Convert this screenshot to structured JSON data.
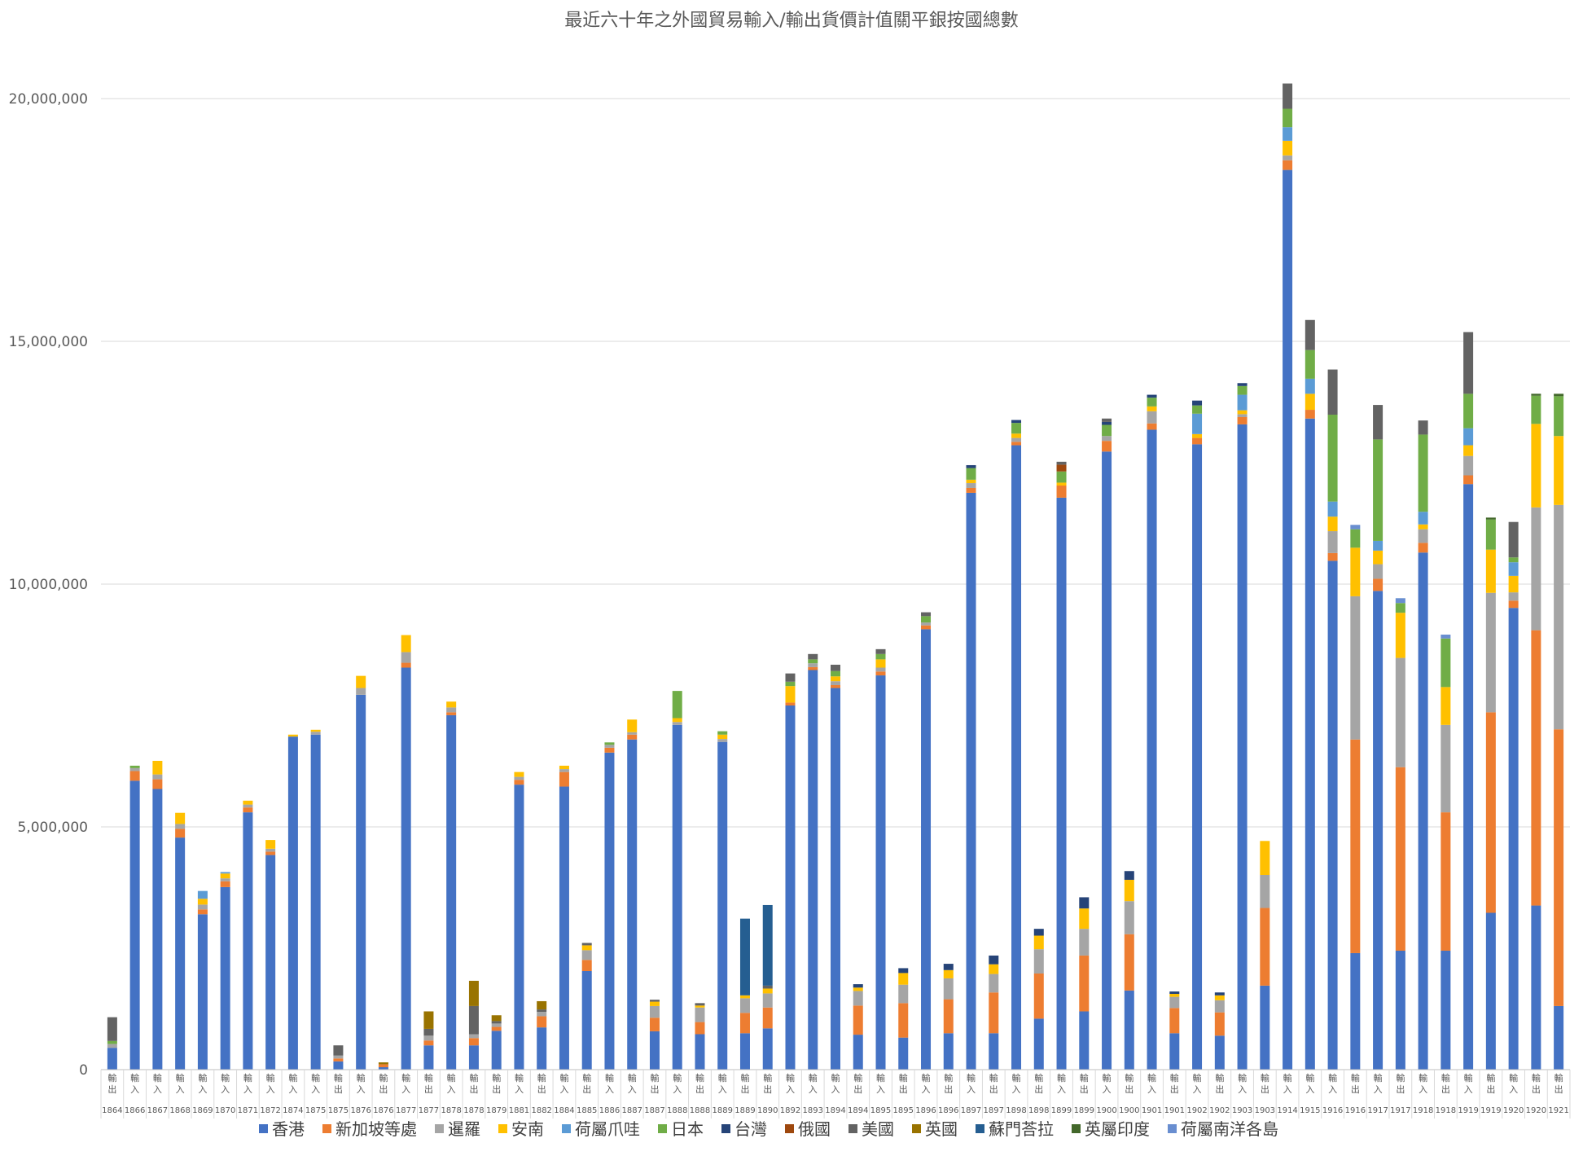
{
  "chart_data": {
    "type": "bar",
    "stacked": true,
    "title": "最近六十年之外國貿易輸入/輸出貨價計值關平銀按國總數",
    "xlabel": "",
    "ylabel": "",
    "ylim": [
      0,
      21000000
    ],
    "yticks": [
      0,
      5000000,
      10000000,
      15000000,
      20000000
    ],
    "ytick_labels": [
      "0",
      "5,000,000",
      "10,000,000",
      "15,000,000",
      "20,000,000"
    ],
    "grid": true,
    "legend_position": "bottom",
    "series_names": [
      "香港",
      "新加坡等處",
      "暹羅",
      "安南",
      "荷屬爪哇",
      "日本",
      "台灣",
      "俄國",
      "美國",
      "英國",
      "蘇門荅拉",
      "英屬印度",
      "荷屬南洋各島"
    ],
    "series_colors": [
      "#4472c4",
      "#ed7d31",
      "#a5a5a5",
      "#ffc000",
      "#5b9bd5",
      "#70ad47",
      "#264478",
      "#9e480e",
      "#636363",
      "#997300",
      "#255e91",
      "#43682b",
      "#698ed0"
    ],
    "categories": [
      {
        "year": "1864",
        "flow": "輸出",
        "v": [
          450000,
          0,
          80000,
          0,
          0,
          60000,
          0,
          0,
          490000,
          0,
          0,
          0,
          0
        ]
      },
      {
        "year": "1866",
        "flow": "輸入",
        "v": [
          5950000,
          200000,
          60000,
          0,
          0,
          50000,
          0,
          0,
          0,
          0,
          0,
          0,
          0
        ]
      },
      {
        "year": "1867",
        "flow": "輸入",
        "v": [
          5780000,
          200000,
          100000,
          280000,
          0,
          0,
          0,
          0,
          0,
          0,
          0,
          0,
          0
        ]
      },
      {
        "year": "1868",
        "flow": "輸入",
        "v": [
          4780000,
          180000,
          100000,
          230000,
          0,
          0,
          0,
          0,
          0,
          0,
          0,
          0,
          0
        ]
      },
      {
        "year": "1869",
        "flow": "輸入",
        "v": [
          3200000,
          100000,
          100000,
          120000,
          160000,
          0,
          0,
          0,
          0,
          0,
          0,
          0,
          0
        ]
      },
      {
        "year": "1870",
        "flow": "輸入",
        "v": [
          3760000,
          120000,
          60000,
          100000,
          30000,
          0,
          0,
          0,
          0,
          0,
          0,
          0,
          0
        ]
      },
      {
        "year": "1871",
        "flow": "輸入",
        "v": [
          5300000,
          100000,
          60000,
          80000,
          0,
          0,
          0,
          0,
          0,
          0,
          0,
          0,
          0
        ]
      },
      {
        "year": "1872",
        "flow": "輸入",
        "v": [
          4420000,
          70000,
          60000,
          180000,
          0,
          0,
          0,
          0,
          0,
          0,
          0,
          0,
          0
        ]
      },
      {
        "year": "1874",
        "flow": "輸入",
        "v": [
          6860000,
          0,
          0,
          40000,
          0,
          0,
          0,
          0,
          0,
          0,
          0,
          0,
          0
        ]
      },
      {
        "year": "1875",
        "flow": "輸入",
        "v": [
          6900000,
          0,
          60000,
          40000,
          0,
          0,
          0,
          0,
          0,
          0,
          0,
          0,
          0
        ]
      },
      {
        "year": "1875",
        "flow": "輸出",
        "v": [
          170000,
          60000,
          60000,
          0,
          0,
          0,
          0,
          0,
          210000,
          0,
          0,
          0,
          0
        ]
      },
      {
        "year": "1876",
        "flow": "輸入",
        "v": [
          7720000,
          0,
          140000,
          250000,
          0,
          0,
          0,
          0,
          0,
          0,
          0,
          0,
          0
        ]
      },
      {
        "year": "1876",
        "flow": "輸出",
        "v": [
          50000,
          60000,
          0,
          0,
          0,
          0,
          0,
          0,
          0,
          40000,
          0,
          0,
          0
        ]
      },
      {
        "year": "1877",
        "flow": "輸入",
        "v": [
          8280000,
          100000,
          220000,
          350000,
          0,
          0,
          0,
          0,
          0,
          0,
          0,
          0,
          0
        ]
      },
      {
        "year": "1877",
        "flow": "輸出",
        "v": [
          500000,
          100000,
          100000,
          0,
          0,
          0,
          0,
          0,
          140000,
          360000,
          0,
          0,
          0
        ]
      },
      {
        "year": "1878",
        "flow": "輸入",
        "v": [
          7300000,
          60000,
          100000,
          120000,
          0,
          0,
          0,
          0,
          0,
          0,
          0,
          0,
          0
        ]
      },
      {
        "year": "1878",
        "flow": "輸出",
        "v": [
          500000,
          150000,
          80000,
          0,
          0,
          0,
          0,
          0,
          580000,
          520000,
          0,
          0,
          0
        ]
      },
      {
        "year": "1879",
        "flow": "輸出",
        "v": [
          800000,
          80000,
          70000,
          0,
          0,
          0,
          0,
          0,
          50000,
          120000,
          0,
          0,
          0
        ]
      },
      {
        "year": "1881",
        "flow": "輸入",
        "v": [
          5870000,
          100000,
          60000,
          100000,
          0,
          0,
          0,
          0,
          0,
          0,
          0,
          0,
          0
        ]
      },
      {
        "year": "1882",
        "flow": "輸出",
        "v": [
          870000,
          230000,
          90000,
          0,
          0,
          0,
          0,
          0,
          50000,
          170000,
          0,
          0,
          0
        ]
      },
      {
        "year": "1884",
        "flow": "輸入",
        "v": [
          5830000,
          300000,
          60000,
          70000,
          0,
          0,
          0,
          0,
          0,
          0,
          0,
          0,
          0
        ]
      },
      {
        "year": "1885",
        "flow": "輸出",
        "v": [
          2030000,
          230000,
          200000,
          100000,
          0,
          0,
          0,
          0,
          50000,
          0,
          0,
          0,
          0
        ]
      },
      {
        "year": "1886",
        "flow": "輸入",
        "v": [
          6530000,
          100000,
          60000,
          0,
          0,
          50000,
          0,
          0,
          0,
          0,
          0,
          0,
          0
        ]
      },
      {
        "year": "1887",
        "flow": "輸入",
        "v": [
          6800000,
          100000,
          50000,
          260000,
          0,
          0,
          0,
          0,
          0,
          0,
          0,
          0,
          0
        ]
      },
      {
        "year": "1887",
        "flow": "輸出",
        "v": [
          790000,
          280000,
          240000,
          90000,
          0,
          0,
          0,
          0,
          40000,
          0,
          0,
          0,
          0
        ]
      },
      {
        "year": "1888",
        "flow": "輸入",
        "v": [
          7100000,
          0,
          60000,
          80000,
          0,
          560000,
          0,
          0,
          0,
          0,
          0,
          0,
          0
        ]
      },
      {
        "year": "1888",
        "flow": "輸出",
        "v": [
          730000,
          250000,
          300000,
          40000,
          0,
          0,
          0,
          0,
          50000,
          0,
          0,
          0,
          0
        ]
      },
      {
        "year": "1889",
        "flow": "輸入",
        "v": [
          6750000,
          0,
          60000,
          90000,
          0,
          70000,
          0,
          0,
          0,
          0,
          0,
          0,
          0
        ]
      },
      {
        "year": "1889",
        "flow": "輸出",
        "v": [
          750000,
          420000,
          300000,
          60000,
          0,
          0,
          0,
          0,
          0,
          0,
          1580000,
          0,
          0
        ]
      },
      {
        "year": "1890",
        "flow": "輸出",
        "v": [
          850000,
          430000,
          290000,
          100000,
          0,
          0,
          0,
          0,
          60000,
          0,
          1660000,
          0,
          0
        ]
      },
      {
        "year": "1892",
        "flow": "輸入",
        "v": [
          7500000,
          60000,
          0,
          340000,
          0,
          90000,
          0,
          0,
          170000,
          0,
          0,
          0,
          0
        ]
      },
      {
        "year": "1893",
        "flow": "輸入",
        "v": [
          8230000,
          60000,
          80000,
          0,
          0,
          80000,
          0,
          0,
          110000,
          0,
          0,
          0,
          0
        ]
      },
      {
        "year": "1894",
        "flow": "輸入",
        "v": [
          7860000,
          60000,
          80000,
          100000,
          0,
          110000,
          0,
          0,
          130000,
          0,
          0,
          0,
          0
        ]
      },
      {
        "year": "1894",
        "flow": "輸出",
        "v": [
          720000,
          600000,
          300000,
          70000,
          0,
          0,
          70000,
          0,
          0,
          0,
          0,
          0,
          0
        ]
      },
      {
        "year": "1895",
        "flow": "輸入",
        "v": [
          8120000,
          80000,
          80000,
          170000,
          0,
          110000,
          0,
          0,
          100000,
          0,
          0,
          0,
          0
        ]
      },
      {
        "year": "1895",
        "flow": "輸出",
        "v": [
          660000,
          710000,
          380000,
          240000,
          0,
          0,
          100000,
          0,
          0,
          0,
          0,
          0,
          0
        ]
      },
      {
        "year": "1896",
        "flow": "輸入",
        "v": [
          9070000,
          80000,
          60000,
          0,
          0,
          130000,
          0,
          0,
          80000,
          0,
          0,
          0,
          0
        ]
      },
      {
        "year": "1896",
        "flow": "輸出",
        "v": [
          750000,
          700000,
          430000,
          170000,
          0,
          0,
          130000,
          0,
          0,
          0,
          0,
          0,
          0
        ]
      },
      {
        "year": "1897",
        "flow": "輸入",
        "v": [
          11880000,
          100000,
          100000,
          70000,
          0,
          240000,
          60000,
          0,
          0,
          0,
          0,
          0,
          0
        ]
      },
      {
        "year": "1897",
        "flow": "輸出",
        "v": [
          750000,
          840000,
          380000,
          200000,
          0,
          0,
          180000,
          0,
          0,
          0,
          0,
          0,
          0
        ]
      },
      {
        "year": "1898",
        "flow": "輸入",
        "v": [
          12860000,
          70000,
          80000,
          90000,
          0,
          220000,
          60000,
          0,
          0,
          0,
          0,
          0,
          0
        ]
      },
      {
        "year": "1898",
        "flow": "輸出",
        "v": [
          1050000,
          930000,
          500000,
          280000,
          0,
          0,
          140000,
          0,
          0,
          0,
          0,
          0,
          0
        ]
      },
      {
        "year": "1899",
        "flow": "輸入",
        "v": [
          11780000,
          250000,
          0,
          60000,
          0,
          230000,
          0,
          140000,
          60000,
          0,
          0,
          0,
          0
        ]
      },
      {
        "year": "1899",
        "flow": "輸出",
        "v": [
          1200000,
          1150000,
          550000,
          420000,
          0,
          0,
          230000,
          0,
          0,
          0,
          0,
          0,
          0
        ]
      },
      {
        "year": "1900",
        "flow": "輸入",
        "v": [
          12730000,
          220000,
          100000,
          0,
          0,
          230000,
          60000,
          0,
          70000,
          0,
          0,
          0,
          0
        ]
      },
      {
        "year": "1900",
        "flow": "輸出",
        "v": [
          1630000,
          1160000,
          680000,
          440000,
          0,
          0,
          180000,
          0,
          0,
          0,
          0,
          0,
          0
        ]
      },
      {
        "year": "1901",
        "flow": "輸入",
        "v": [
          13180000,
          130000,
          250000,
          100000,
          0,
          180000,
          60000,
          0,
          0,
          0,
          0,
          0,
          0
        ]
      },
      {
        "year": "1901",
        "flow": "輸出",
        "v": [
          750000,
          520000,
          230000,
          60000,
          0,
          0,
          50000,
          0,
          0,
          0,
          0,
          0,
          0
        ]
      },
      {
        "year": "1902",
        "flow": "輸入",
        "v": [
          12880000,
          130000,
          0,
          80000,
          420000,
          170000,
          100000,
          0,
          0,
          0,
          0,
          0,
          0
        ]
      },
      {
        "year": "1902",
        "flow": "輸出",
        "v": [
          700000,
          480000,
          250000,
          100000,
          0,
          0,
          60000,
          0,
          0,
          0,
          0,
          0,
          0
        ]
      },
      {
        "year": "1903",
        "flow": "輸入",
        "v": [
          13290000,
          150000,
          60000,
          80000,
          320000,
          180000,
          60000,
          0,
          0,
          0,
          0,
          0,
          0
        ]
      },
      {
        "year": "1903",
        "flow": "輸出",
        "v": [
          1730000,
          1600000,
          680000,
          700000,
          0,
          0,
          0,
          0,
          0,
          0,
          0,
          0,
          0
        ]
      },
      {
        "year": "1914",
        "flow": "輸入",
        "v": [
          18530000,
          200000,
          100000,
          300000,
          280000,
          380000,
          0,
          0,
          520000,
          0,
          0,
          0,
          0
        ]
      },
      {
        "year": "1915",
        "flow": "輸入",
        "v": [
          13410000,
          180000,
          0,
          330000,
          310000,
          590000,
          0,
          0,
          620000,
          0,
          0,
          0,
          0
        ]
      },
      {
        "year": "1916",
        "flow": "輸入",
        "v": [
          10480000,
          160000,
          450000,
          300000,
          310000,
          1790000,
          0,
          0,
          930000,
          0,
          0,
          0,
          0
        ]
      },
      {
        "year": "1916",
        "flow": "輸出",
        "v": [
          2400000,
          4400000,
          2950000,
          1000000,
          0,
          380000,
          0,
          0,
          0,
          0,
          0,
          0,
          90000
        ]
      },
      {
        "year": "1917",
        "flow": "輸入",
        "v": [
          9860000,
          250000,
          300000,
          280000,
          200000,
          2090000,
          0,
          0,
          710000,
          0,
          0,
          0,
          0
        ]
      },
      {
        "year": "1917",
        "flow": "輸出",
        "v": [
          2450000,
          3780000,
          2250000,
          930000,
          0,
          200000,
          0,
          0,
          0,
          0,
          0,
          0,
          100000
        ]
      },
      {
        "year": "1918",
        "flow": "輸入",
        "v": [
          10650000,
          200000,
          280000,
          100000,
          260000,
          1590000,
          0,
          0,
          290000,
          0,
          0,
          0,
          0
        ]
      },
      {
        "year": "1918",
        "flow": "輸出",
        "v": [
          2450000,
          2850000,
          1800000,
          780000,
          0,
          1000000,
          0,
          0,
          0,
          0,
          0,
          0,
          80000
        ]
      },
      {
        "year": "1919",
        "flow": "輸入",
        "v": [
          12060000,
          180000,
          400000,
          220000,
          350000,
          710000,
          0,
          0,
          1270000,
          0,
          0,
          0,
          0
        ]
      },
      {
        "year": "1919",
        "flow": "輸出",
        "v": [
          3230000,
          4130000,
          2460000,
          890000,
          0,
          620000,
          0,
          0,
          0,
          0,
          0,
          40000,
          0
        ]
      },
      {
        "year": "1920",
        "flow": "輸入",
        "v": [
          9510000,
          150000,
          170000,
          340000,
          280000,
          100000,
          0,
          0,
          730000,
          0,
          0,
          0,
          0
        ]
      },
      {
        "year": "1920",
        "flow": "輸出",
        "v": [
          3380000,
          5670000,
          2530000,
          1720000,
          0,
          580000,
          0,
          0,
          0,
          0,
          0,
          40000,
          0
        ]
      },
      {
        "year": "1921",
        "flow": "輸出",
        "v": [
          1310000,
          5700000,
          4620000,
          1420000,
          0,
          820000,
          0,
          0,
          0,
          0,
          0,
          50000,
          0
        ]
      }
    ]
  }
}
